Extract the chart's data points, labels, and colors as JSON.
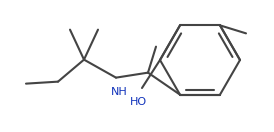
{
  "bg_color": "#ffffff",
  "line_color": "#444444",
  "text_color": "#1133bb",
  "line_width": 1.5,
  "font_size": 8.0
}
